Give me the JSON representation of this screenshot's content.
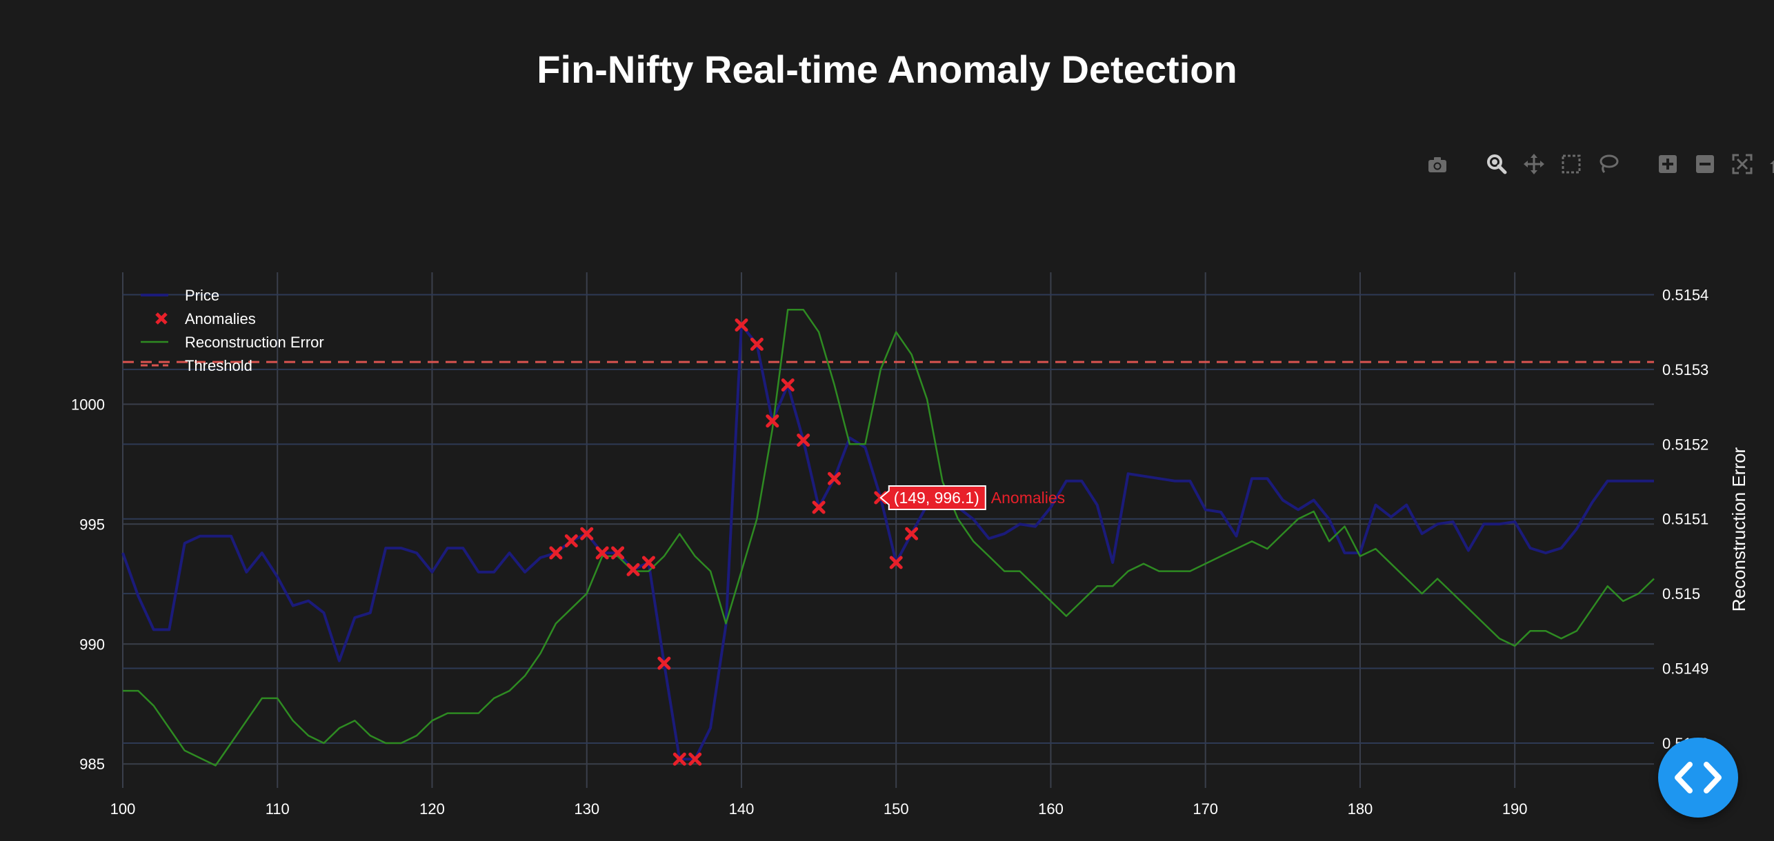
{
  "chart_data": {
    "type": "line",
    "title": "Fin-Nifty Real-time Anomaly Detection",
    "xlabel": "",
    "ylabel": "",
    "y2label": "Reconstruction Error",
    "xlim": [
      100,
      199
    ],
    "ylim": [
      984,
      1005.5
    ],
    "y2lim": [
      0.51474,
      0.51543
    ],
    "x_ticks": [
      100,
      110,
      120,
      130,
      140,
      150,
      160,
      170,
      180,
      190
    ],
    "y_ticks": [
      985,
      990,
      995,
      1000
    ],
    "y2_ticks": [
      "0.5148",
      "0.5149",
      "0.515",
      "0.5151",
      "0.5152",
      "0.5153",
      "0.5154"
    ],
    "grid": true,
    "legend_position": "top-left",
    "series": [
      {
        "name": "Price",
        "axis": "left",
        "color": "#1b1b7a",
        "x": [
          100,
          101,
          102,
          103,
          104,
          105,
          106,
          107,
          108,
          109,
          110,
          111,
          112,
          113,
          114,
          115,
          116,
          117,
          118,
          119,
          120,
          121,
          122,
          123,
          124,
          125,
          126,
          127,
          128,
          129,
          130,
          131,
          132,
          133,
          134,
          135,
          136,
          137,
          138,
          139,
          140,
          141,
          142,
          143,
          144,
          145,
          146,
          147,
          148,
          149,
          150,
          151,
          152,
          153,
          154,
          155,
          156,
          157,
          158,
          159,
          160,
          161,
          162,
          163,
          164,
          165,
          166,
          167,
          168,
          169,
          170,
          171,
          172,
          173,
          174,
          175,
          176,
          177,
          178,
          179,
          180,
          181,
          182,
          183,
          184,
          185,
          186,
          187,
          188,
          189,
          190,
          191,
          192,
          193,
          194,
          195,
          196,
          197,
          198,
          199
        ],
        "y": [
          993.8,
          992.0,
          990.6,
          990.6,
          994.2,
          994.5,
          994.5,
          994.5,
          993.0,
          993.8,
          992.8,
          991.6,
          991.8,
          991.3,
          989.3,
          991.1,
          991.3,
          994.0,
          994.0,
          993.8,
          993.0,
          994.0,
          994.0,
          993.0,
          993.0,
          993.8,
          993.0,
          993.6,
          993.8,
          994.3,
          994.6,
          993.8,
          993.8,
          993.1,
          993.4,
          989.2,
          985.2,
          985.2,
          986.5,
          990.8,
          1003.3,
          1002.5,
          999.3,
          1000.8,
          998.5,
          995.7,
          996.9,
          998.6,
          998.2,
          996.1,
          993.4,
          994.6,
          995.8,
          996.0,
          995.7,
          995.2,
          994.4,
          994.6,
          995.0,
          994.9,
          995.7,
          996.8,
          996.8,
          995.8,
          993.4,
          997.1,
          997.0,
          996.9,
          996.8,
          996.8,
          995.6,
          995.5,
          994.5,
          996.9,
          996.9,
          996.0,
          995.6,
          996.0,
          995.2,
          993.8,
          993.8,
          995.8,
          995.3,
          995.8,
          994.6,
          995.0,
          995.1,
          993.9,
          995.0,
          995.0,
          995.1,
          994.0,
          993.8,
          994.0,
          994.8,
          995.9,
          996.8,
          996.8,
          996.8,
          996.8
        ]
      },
      {
        "name": "Reconstruction Error",
        "axis": "right",
        "color": "#2e8b22",
        "x": [
          100,
          101,
          102,
          103,
          104,
          105,
          106,
          107,
          108,
          109,
          110,
          111,
          112,
          113,
          114,
          115,
          116,
          117,
          118,
          119,
          120,
          121,
          122,
          123,
          124,
          125,
          126,
          127,
          128,
          129,
          130,
          131,
          132,
          133,
          134,
          135,
          136,
          137,
          138,
          139,
          140,
          141,
          142,
          143,
          144,
          145,
          146,
          147,
          148,
          149,
          150,
          151,
          152,
          153,
          154,
          155,
          156,
          157,
          158,
          159,
          160,
          161,
          162,
          163,
          164,
          165,
          166,
          167,
          168,
          169,
          170,
          171,
          172,
          173,
          174,
          175,
          176,
          177,
          178,
          179,
          180,
          181,
          182,
          183,
          184,
          185,
          186,
          187,
          188,
          189,
          190,
          191,
          192,
          193,
          194,
          195,
          196,
          197,
          198,
          199
        ],
        "y": [
          0.51487,
          0.51487,
          0.51485,
          0.51482,
          0.51479,
          0.51478,
          0.51477,
          0.5148,
          0.51483,
          0.51486,
          0.51486,
          0.51483,
          0.51481,
          0.5148,
          0.51482,
          0.51483,
          0.51481,
          0.5148,
          0.5148,
          0.51481,
          0.51483,
          0.51484,
          0.51484,
          0.51484,
          0.51486,
          0.51487,
          0.51489,
          0.51492,
          0.51496,
          0.51498,
          0.515,
          0.51505,
          0.51505,
          0.51503,
          0.51503,
          0.51505,
          0.51508,
          0.51505,
          0.51503,
          0.51496,
          0.51503,
          0.5151,
          0.51522,
          0.51538,
          0.51538,
          0.51535,
          0.51528,
          0.5152,
          0.5152,
          0.5153,
          0.51535,
          0.51532,
          0.51526,
          0.51515,
          0.5151,
          0.51507,
          0.51505,
          0.51503,
          0.51503,
          0.51501,
          0.51499,
          0.51497,
          0.51499,
          0.51501,
          0.51501,
          0.51503,
          0.51504,
          0.51503,
          0.51503,
          0.51503,
          0.51504,
          0.51505,
          0.51506,
          0.51507,
          0.51506,
          0.51508,
          0.5151,
          0.51511,
          0.51507,
          0.51509,
          0.51505,
          0.51506,
          0.51504,
          0.51502,
          0.515,
          0.51502,
          0.515,
          0.51498,
          0.51496,
          0.51494,
          0.51493,
          0.51495,
          0.51495,
          0.51494,
          0.51495,
          0.51498,
          0.51501,
          0.51499,
          0.515,
          0.51502
        ]
      },
      {
        "name": "Anomalies",
        "axis": "left",
        "color": "#e8202a",
        "mode": "markers",
        "x": [
          128,
          129,
          130,
          131,
          132,
          133,
          134,
          135,
          136,
          137,
          140,
          141,
          142,
          143,
          144,
          145,
          146,
          149,
          150,
          151
        ],
        "y": [
          993.8,
          994.3,
          994.6,
          993.8,
          993.8,
          993.1,
          993.4,
          989.2,
          985.2,
          985.2,
          1003.3,
          1002.5,
          999.3,
          1000.8,
          998.5,
          995.7,
          996.9,
          996.1,
          993.4,
          994.6
        ]
      },
      {
        "name": "Threshold",
        "axis": "right",
        "color": "#d9534f",
        "dash": "dash",
        "y": 0.51531
      }
    ],
    "hover": {
      "series": "Anomalies",
      "x": 149,
      "y": 996.1,
      "text": "(149, 996.1)",
      "label": "Anomalies"
    }
  },
  "modebar": {
    "buttons": [
      "camera-icon",
      "zoom-icon",
      "pan-icon",
      "box-select-icon",
      "lasso-icon",
      "zoom-in-icon",
      "zoom-out-icon",
      "autoscale-icon",
      "reset-axes-icon",
      "plotly-logo-icon"
    ]
  },
  "fab": {
    "icon": "code-icon",
    "color": "#1e96f0"
  }
}
